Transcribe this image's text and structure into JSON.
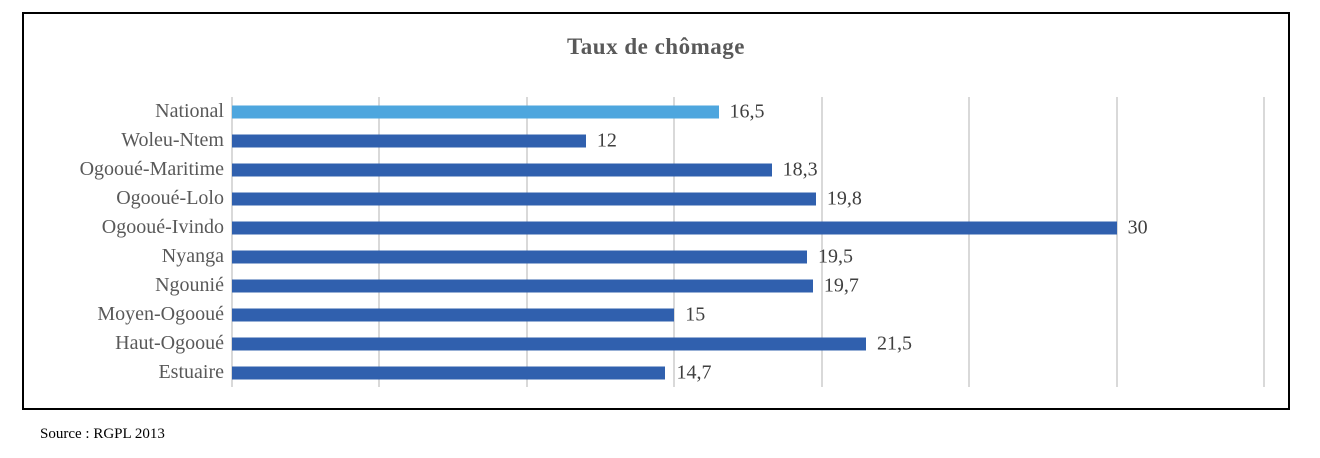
{
  "title": "Taux de chômage",
  "source": "Source : RGPL 2013",
  "colors": {
    "bar_default": "#3060ae",
    "bar_highlight": "#4ea6de",
    "gridline": "#d9d9d9",
    "title_text": "#595959",
    "category_text": "#595959",
    "value_text": "#3f3f3f",
    "frame_border": "#000000"
  },
  "chart_data": {
    "type": "bar",
    "orientation": "horizontal",
    "title": "Taux de chômage",
    "categories": [
      "National",
      "Woleu-Ntem",
      "Ogooué-Maritime",
      "Ogooué-Lolo",
      "Ogooué-Ivindo",
      "Nyanga",
      "Ngounié",
      "Moyen-Ogooué",
      "Haut-Ogooué",
      "Estuaire"
    ],
    "values": [
      16.5,
      12,
      18.3,
      19.8,
      30,
      19.5,
      19.7,
      15,
      21.5,
      14.7
    ],
    "value_labels": [
      "16,5",
      "12",
      "18,3",
      "19,8",
      "30",
      "19,5",
      "19,7",
      "15",
      "21,5",
      "14,7"
    ],
    "xlabel": "",
    "ylabel": "",
    "xlim": [
      0,
      35
    ],
    "gridline_step": 5,
    "grid": true,
    "legend": false,
    "highlight_index": 0
  }
}
